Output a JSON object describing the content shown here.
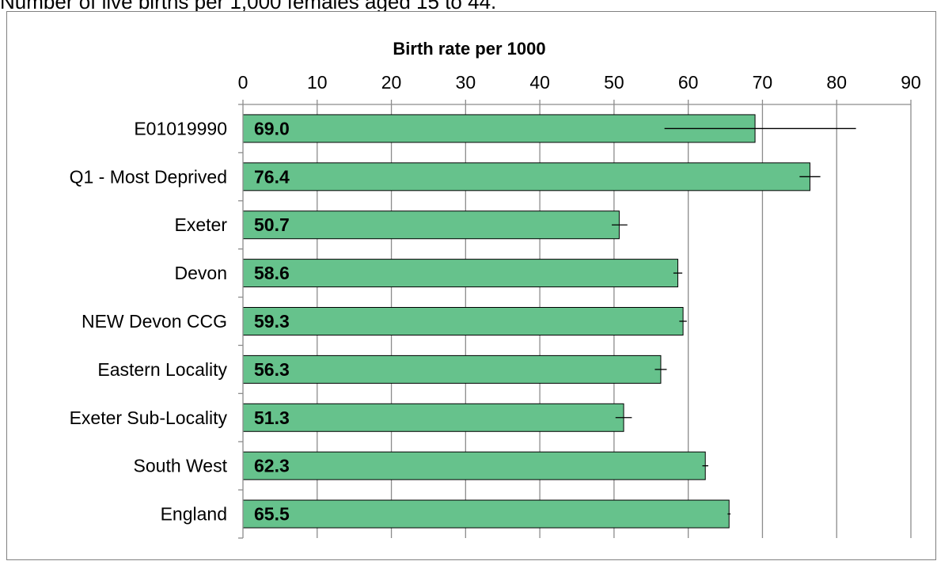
{
  "caption": "Number of live births per 1,000 females aged 15 to 44.",
  "chart_data": {
    "type": "bar",
    "orientation": "horizontal",
    "title": "Birth rate per 1000",
    "categories": [
      "E01019990",
      "Q1 - Most Deprived",
      "Exeter",
      "Devon",
      "NEW Devon CCG",
      "Eastern Locality",
      "Exeter Sub-Locality",
      "South West",
      "England"
    ],
    "values": [
      69.0,
      76.4,
      50.7,
      58.6,
      59.3,
      56.3,
      51.3,
      62.3,
      65.5
    ],
    "data_labels": [
      "69.0",
      "76.4",
      "50.7",
      "58.6",
      "59.3",
      "56.3",
      "51.3",
      "62.3",
      "65.5"
    ],
    "error_low": [
      56.8,
      75.0,
      49.7,
      58.0,
      58.8,
      55.5,
      50.2,
      61.9,
      65.3
    ],
    "error_high": [
      82.6,
      77.8,
      51.8,
      59.2,
      59.8,
      57.1,
      52.4,
      62.7,
      65.7
    ],
    "xlim": [
      0,
      90
    ],
    "xticks": [
      "0",
      "10",
      "20",
      "30",
      "40",
      "50",
      "60",
      "70",
      "80",
      "90"
    ],
    "grid": "vertical",
    "axis_position": "top",
    "bar_color": "#66c28c"
  }
}
